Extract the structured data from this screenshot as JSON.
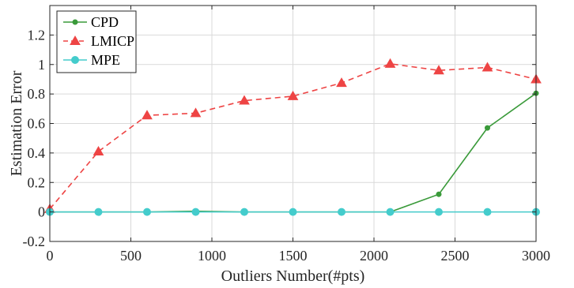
{
  "chart_data": {
    "type": "line",
    "title": "",
    "xlabel": "Outliers Number(#pts)",
    "ylabel": "Estimation Error",
    "xlim": [
      0,
      3000
    ],
    "ylim": [
      -0.2,
      1.4
    ],
    "x_ticks": [
      0,
      500,
      1000,
      1500,
      2000,
      2500,
      3000
    ],
    "x_tick_labels": [
      "0",
      "500",
      "1000",
      "1500",
      "2000",
      "2500",
      "3000"
    ],
    "y_ticks": [
      -0.2,
      0,
      0.2,
      0.4,
      0.6,
      0.8,
      1,
      1.2
    ],
    "y_tick_labels": [
      "-0.2",
      "0",
      "0.2",
      "0.4",
      "0.6",
      "0.8",
      "1",
      "1.2"
    ],
    "grid": true,
    "legend_position": "top-left",
    "x": [
      0,
      300,
      600,
      900,
      1200,
      1500,
      1800,
      2100,
      2400,
      2700,
      3000
    ],
    "series": [
      {
        "name": "CPD",
        "color": "#3a9a3a",
        "line_style": "solid",
        "marker": "dot",
        "values": [
          0,
          0,
          0,
          0.005,
          0,
          0,
          0,
          0,
          0.12,
          0.57,
          0.805
        ]
      },
      {
        "name": "LMICP",
        "color": "#ee4444",
        "line_style": "dashed",
        "marker": "triangle",
        "values": [
          0.02,
          0.41,
          0.655,
          0.67,
          0.755,
          0.785,
          0.875,
          1.005,
          0.96,
          0.98,
          0.9
        ]
      },
      {
        "name": "MPE",
        "color": "#44cccc",
        "line_style": "solid",
        "marker": "circle",
        "values": [
          0,
          0,
          0,
          0,
          0,
          0,
          0,
          0,
          0,
          0,
          0
        ]
      }
    ]
  }
}
